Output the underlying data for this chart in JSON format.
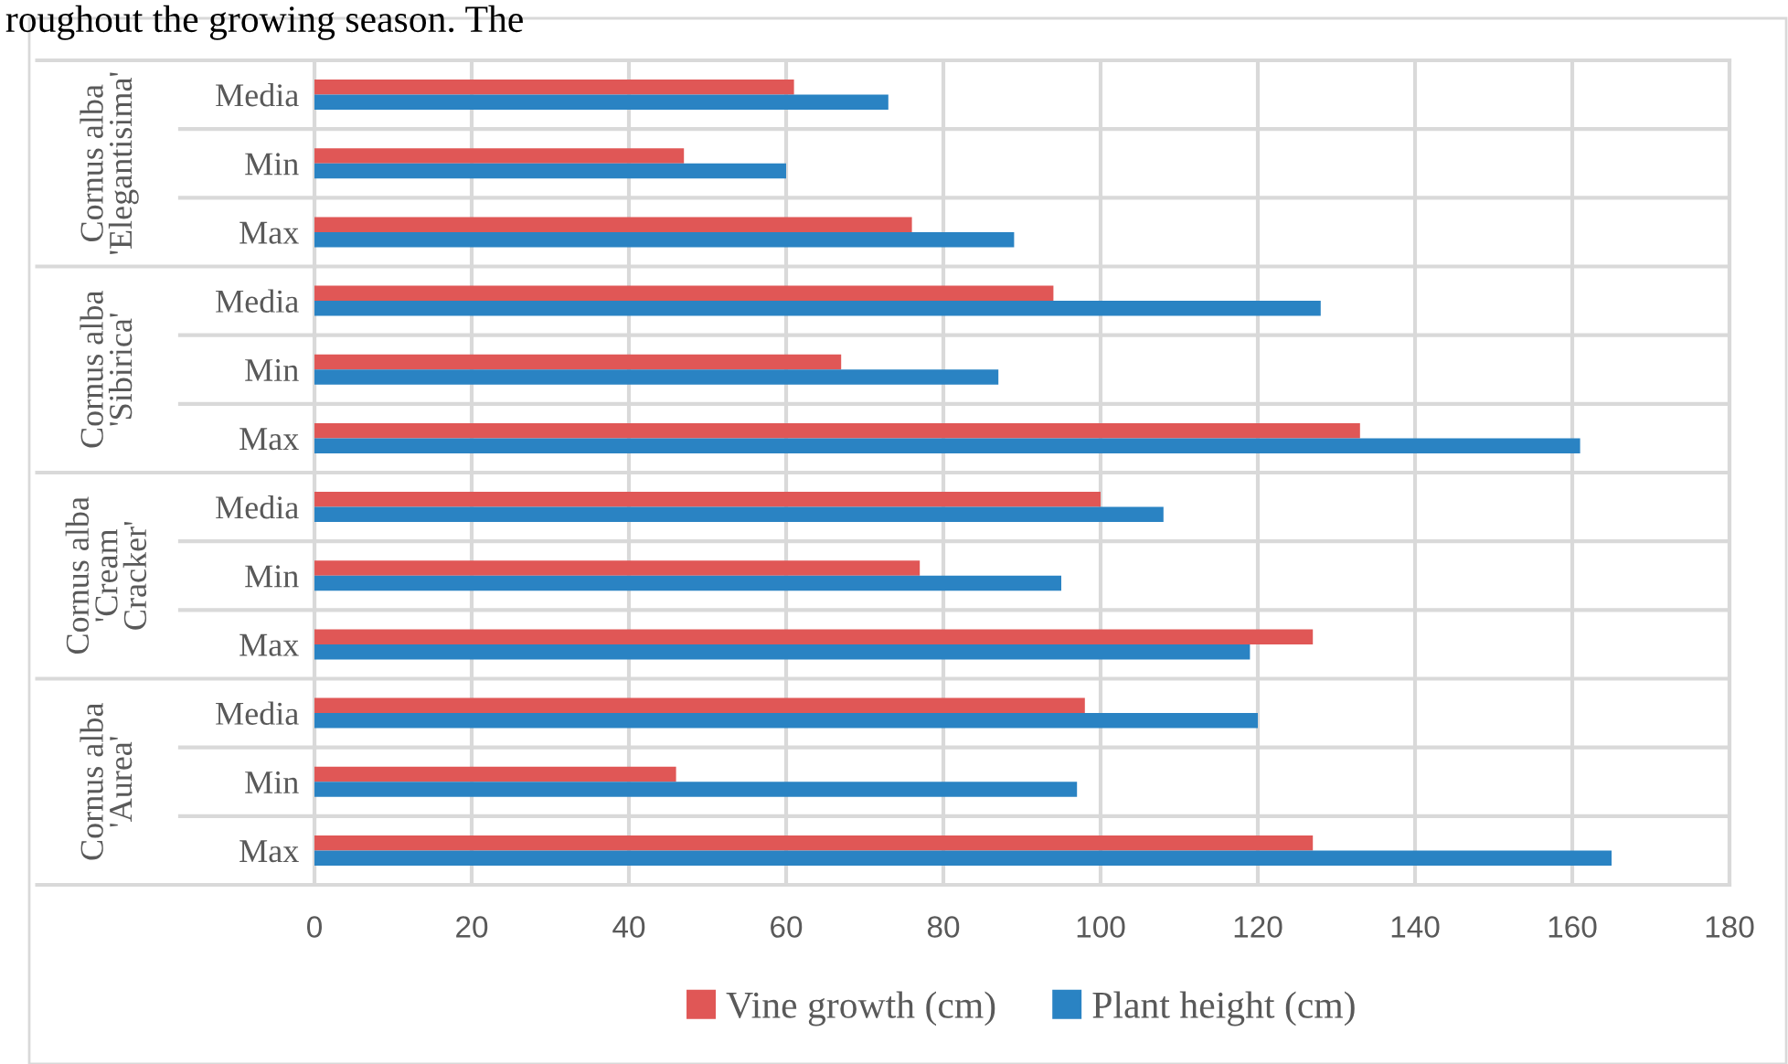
{
  "chart_data": {
    "type": "bar",
    "orientation": "horizontal",
    "categories": [
      "Media",
      "Min",
      "Max",
      "Media",
      "Min",
      "Max",
      "Media",
      "Min",
      "Max",
      "Media",
      "Min",
      "Max"
    ],
    "series": [
      {
        "name": "Vine growth (cm)",
        "color": "#e05756",
        "values": [
          61,
          47,
          76,
          94,
          67,
          133,
          100,
          77,
          127,
          98,
          46,
          127
        ]
      },
      {
        "name": "Plant height (cm)",
        "color": "#2a83c3",
        "values": [
          73,
          60,
          89,
          128,
          87,
          161,
          108,
          95,
          119,
          120,
          97,
          165
        ]
      }
    ],
    "xlim": [
      0,
      180
    ],
    "xticks": [
      0,
      20,
      40,
      60,
      80,
      100,
      120,
      140,
      160,
      180
    ],
    "grid": true,
    "legend": "bottom",
    "annotations": [
      "roughout the growing season. The",
      "Cornus alba\n'Elegantisima'",
      "Cornus alba\n'Sibirica'",
      "Cornus alba\n'Cream\nCracker'",
      "Cornus alba\n'Aurea'"
    ]
  }
}
